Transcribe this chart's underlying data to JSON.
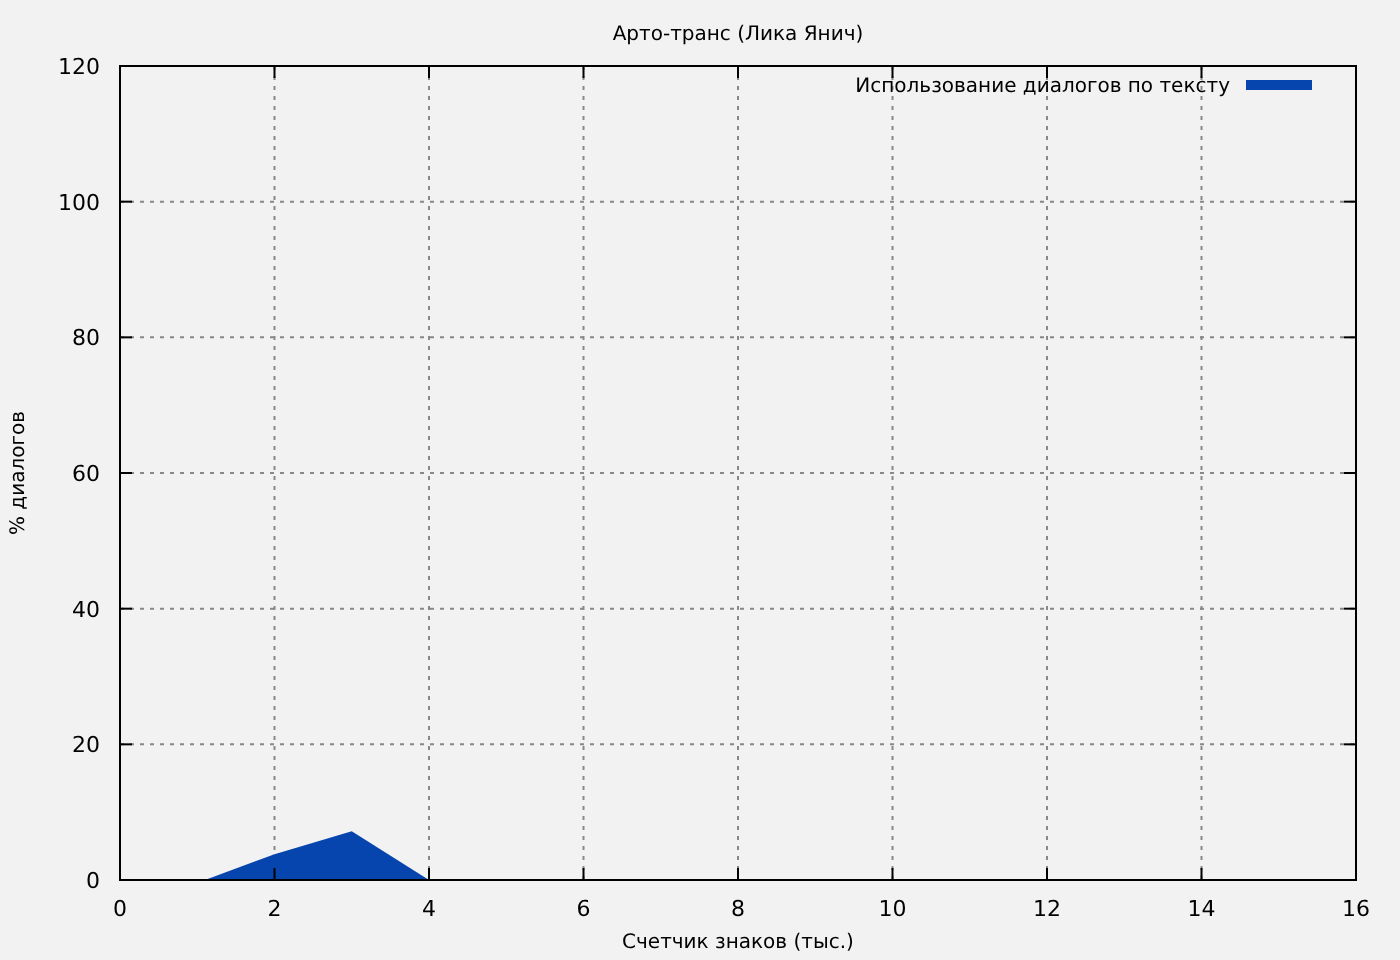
{
  "chart_data": {
    "type": "area",
    "title": "Арто-транс (Лика Янич)",
    "xlabel": "Счетчик знаков (тыс.)",
    "ylabel": "% диалогов",
    "x": [
      1.1,
      2,
      3,
      4
    ],
    "series": [
      {
        "name": "Использование диалогов по тексту",
        "color": "#0645ad",
        "values": [
          0,
          3.8,
          7.2,
          0
        ]
      }
    ],
    "xlim": [
      0,
      16
    ],
    "xticks": [
      0,
      2,
      4,
      6,
      8,
      10,
      12,
      14,
      16
    ],
    "ylim": [
      0,
      120
    ],
    "yticks": [
      0,
      20,
      40,
      60,
      80,
      100,
      120
    ],
    "grid": true,
    "legend": "top right"
  }
}
